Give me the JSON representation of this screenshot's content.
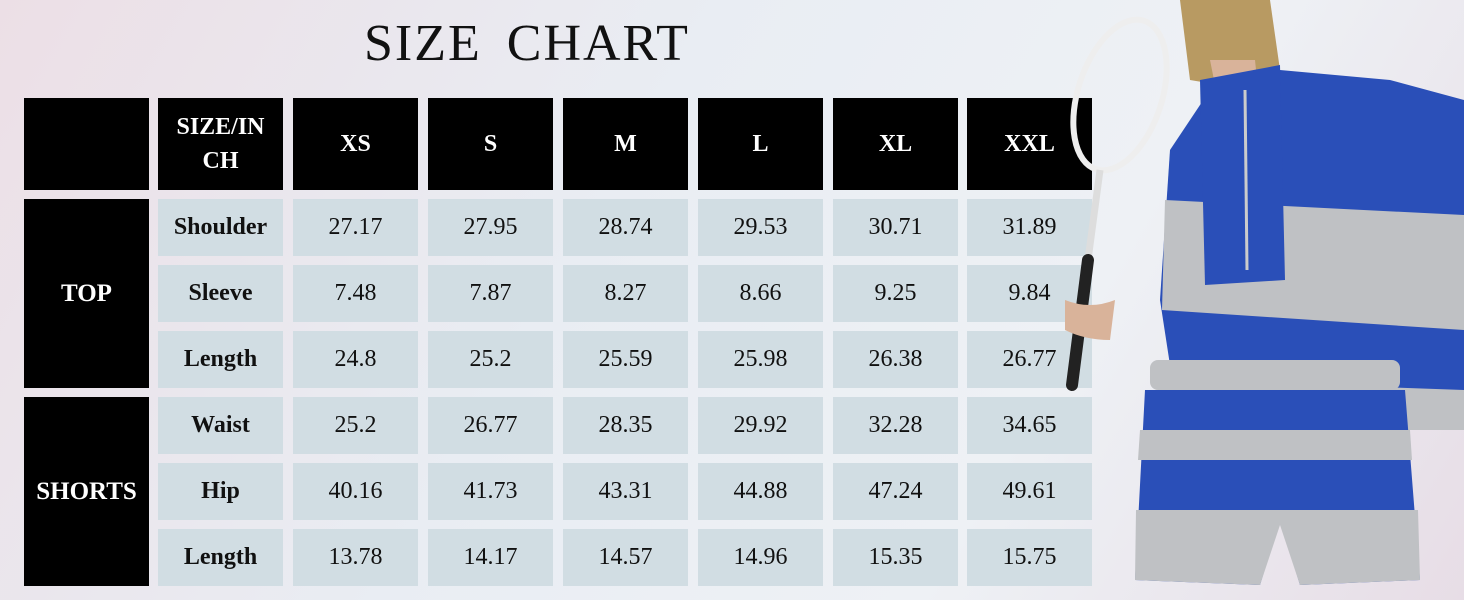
{
  "title": "SIZE  CHART",
  "header": {
    "corner": "",
    "label": "SIZE/IN CH",
    "sizes": [
      "XS",
      "S",
      "M",
      "L",
      "XL",
      "XXL"
    ]
  },
  "groups": [
    {
      "name": "TOP",
      "rows": [
        {
          "label": "Shoulder",
          "values": [
            "27.17",
            "27.95",
            "28.74",
            "29.53",
            "30.71",
            "31.89"
          ]
        },
        {
          "label": "Sleeve",
          "values": [
            "7.48",
            "7.87",
            "8.27",
            "8.66",
            "9.25",
            "9.84"
          ]
        },
        {
          "label": "Length",
          "values": [
            "24.8",
            "25.2",
            "25.59",
            "25.98",
            "26.38",
            "26.77"
          ]
        }
      ]
    },
    {
      "name": "SHORTS",
      "rows": [
        {
          "label": "Waist",
          "values": [
            "25.2",
            "26.77",
            "28.35",
            "29.92",
            "32.28",
            "34.65"
          ]
        },
        {
          "label": "Hip",
          "values": [
            "40.16",
            "41.73",
            "43.31",
            "44.88",
            "47.24",
            "49.61"
          ]
        },
        {
          "label": "Length",
          "values": [
            "13.78",
            "14.17",
            "14.57",
            "14.96",
            "15.35",
            "15.75"
          ]
        }
      ]
    }
  ],
  "colors": {
    "header_bg": "#000000",
    "cell_bg": "#d1dde3",
    "garment_blue": "#2a4fb8",
    "garment_gray": "#bfc1c4"
  }
}
